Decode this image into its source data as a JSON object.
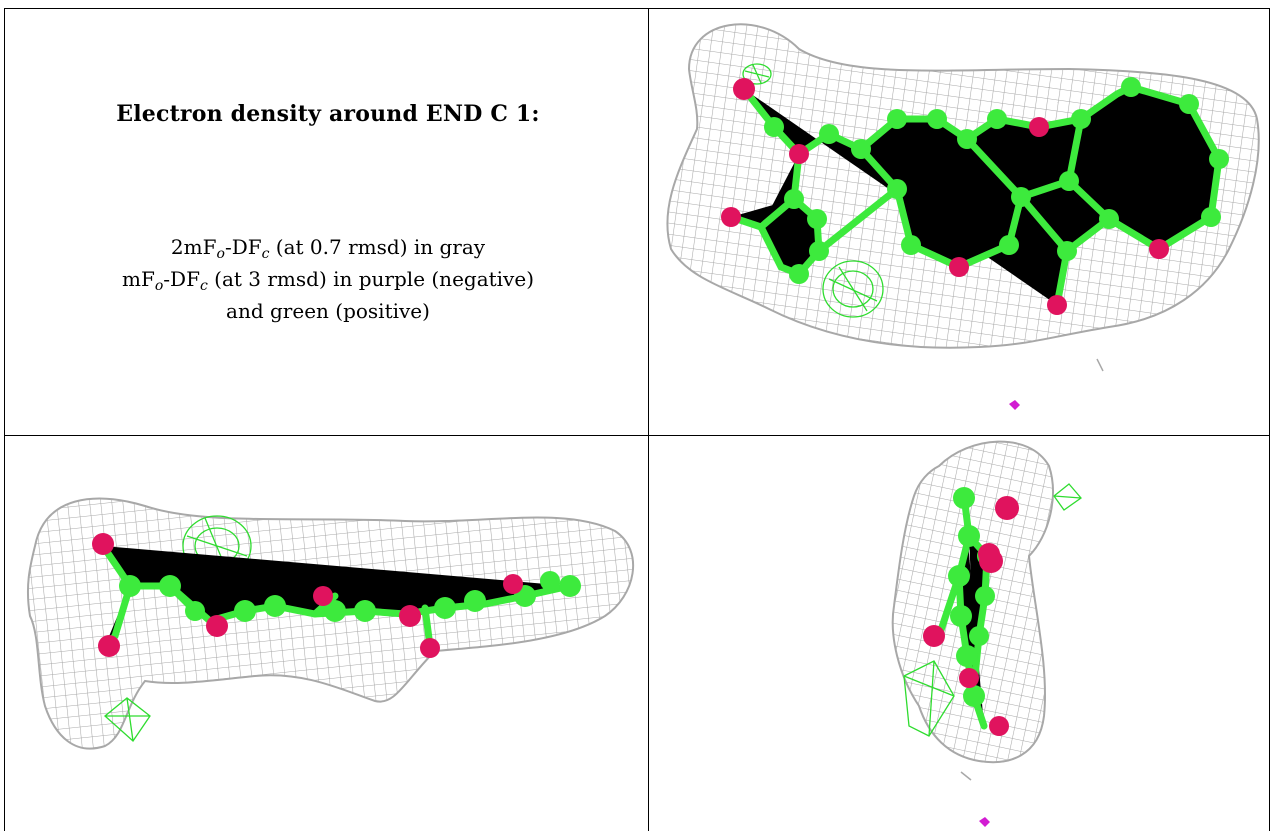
{
  "caption": {
    "title": "Electron density around END C 1:",
    "line1": {
      "a": "2mF",
      "o": "o",
      "b": "-DF",
      "c": "c",
      "rest": " (at 0.7 rmsd) in gray"
    },
    "line2": {
      "a": "mF",
      "o": "o",
      "b": "-DF",
      "c": "c",
      "rest": " (at 3 rmsd) in purple (negative)"
    },
    "line3": "and green (positive)"
  },
  "colors": {
    "mesh_gray": "#a8a8a8",
    "carbon_green": "#3dea3d",
    "oxygen_pink": "#e0135e",
    "positive_density": "#2fdc2f",
    "negative_density": "#d21cd2"
  },
  "panels": [
    {
      "view": "top-right",
      "content": "ligand-face-view"
    },
    {
      "view": "bottom-left",
      "content": "ligand-side-view"
    },
    {
      "view": "bottom-right",
      "content": "ligand-edge-view"
    }
  ]
}
